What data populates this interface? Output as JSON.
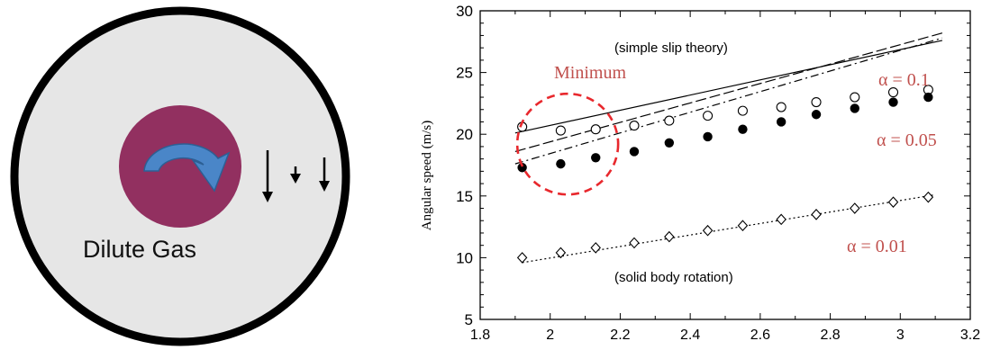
{
  "diagram": {
    "label": "Dilute Gas",
    "colors": {
      "outer": "#e6e6e6",
      "inner": "#923060",
      "arrow": "#4a86c8"
    }
  },
  "chart_data": {
    "type": "scatter",
    "ylabel": "Angular speed (m/s)",
    "xlabel": "",
    "xlim": [
      1.8,
      3.2
    ],
    "ylim": [
      5,
      30
    ],
    "xticks": [
      "1.8",
      "2",
      "2.2",
      "2.4",
      "2.6",
      "2.8",
      "3",
      "3.2"
    ],
    "yticks": [
      "5",
      "10",
      "15",
      "20",
      "25",
      "30"
    ],
    "grid": false,
    "series": [
      {
        "name": "α = 0.1",
        "marker": "open-circle",
        "x": [
          1.92,
          2.03,
          2.13,
          2.24,
          2.34,
          2.45,
          2.55,
          2.66,
          2.76,
          2.87,
          2.98,
          3.08
        ],
        "y": [
          20.6,
          20.3,
          20.4,
          20.7,
          21.1,
          21.5,
          21.9,
          22.2,
          22.6,
          23.0,
          23.4,
          23.6
        ]
      },
      {
        "name": "α = 0.05",
        "marker": "filled-circle",
        "x": [
          1.92,
          2.03,
          2.13,
          2.24,
          2.34,
          2.45,
          2.55,
          2.66,
          2.76,
          2.87,
          2.98,
          3.08
        ],
        "y": [
          17.3,
          17.6,
          18.1,
          18.6,
          19.3,
          19.8,
          20.4,
          21.0,
          21.6,
          22.1,
          22.6,
          23.0
        ]
      },
      {
        "name": "α = 0.01",
        "marker": "open-diamond",
        "x": [
          1.92,
          2.03,
          2.13,
          2.24,
          2.34,
          2.45,
          2.55,
          2.66,
          2.76,
          2.87,
          2.98,
          3.08
        ],
        "y": [
          10.0,
          10.4,
          10.8,
          11.2,
          11.7,
          12.2,
          12.6,
          13.1,
          13.5,
          14.0,
          14.5,
          14.9
        ]
      }
    ],
    "lines": [
      {
        "style": "solid",
        "x": [
          1.9,
          3.12
        ],
        "y": [
          20.1,
          27.6
        ]
      },
      {
        "style": "dash-long",
        "x": [
          1.9,
          3.12
        ],
        "y": [
          18.6,
          28.2
        ]
      },
      {
        "style": "dash-dot",
        "x": [
          1.9,
          3.12
        ],
        "y": [
          17.6,
          27.8
        ]
      },
      {
        "style": "dotted",
        "x": [
          1.92,
          3.1
        ],
        "y": [
          9.6,
          15.1
        ]
      }
    ],
    "annotations": {
      "simple_slip": "(simple slip theory)",
      "solid_body": "(solid body rotation)",
      "minimum": "Minimum",
      "alpha_01": "α = 0.1",
      "alpha_005": "α = 0.05",
      "alpha_001": "α = 0.01"
    },
    "colors": {
      "annotation_red": "#c0504d",
      "minimum_circle": "#e8282d",
      "ink": "#000000"
    }
  }
}
